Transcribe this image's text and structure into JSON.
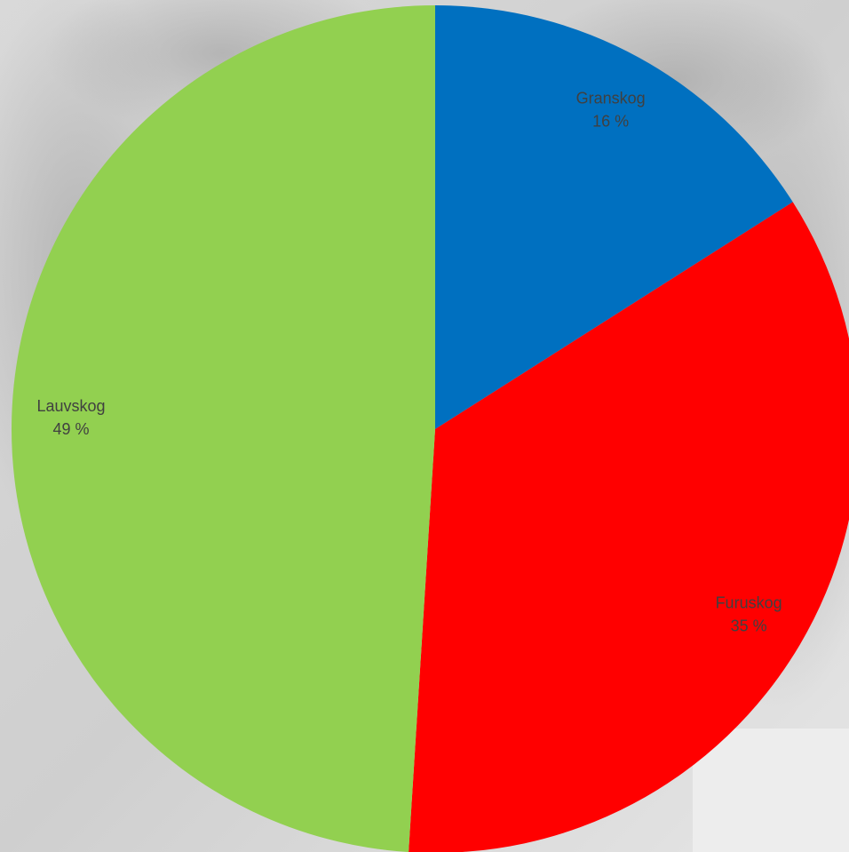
{
  "chart_data": {
    "type": "pie",
    "categories": [
      "Granskog",
      "Furuskog",
      "Lauvskog"
    ],
    "values": [
      16,
      35,
      49
    ],
    "value_labels": [
      "16 %",
      "35 %",
      "49 %"
    ],
    "colors": [
      "#0070c0",
      "#ff0000",
      "#92d050"
    ]
  }
}
